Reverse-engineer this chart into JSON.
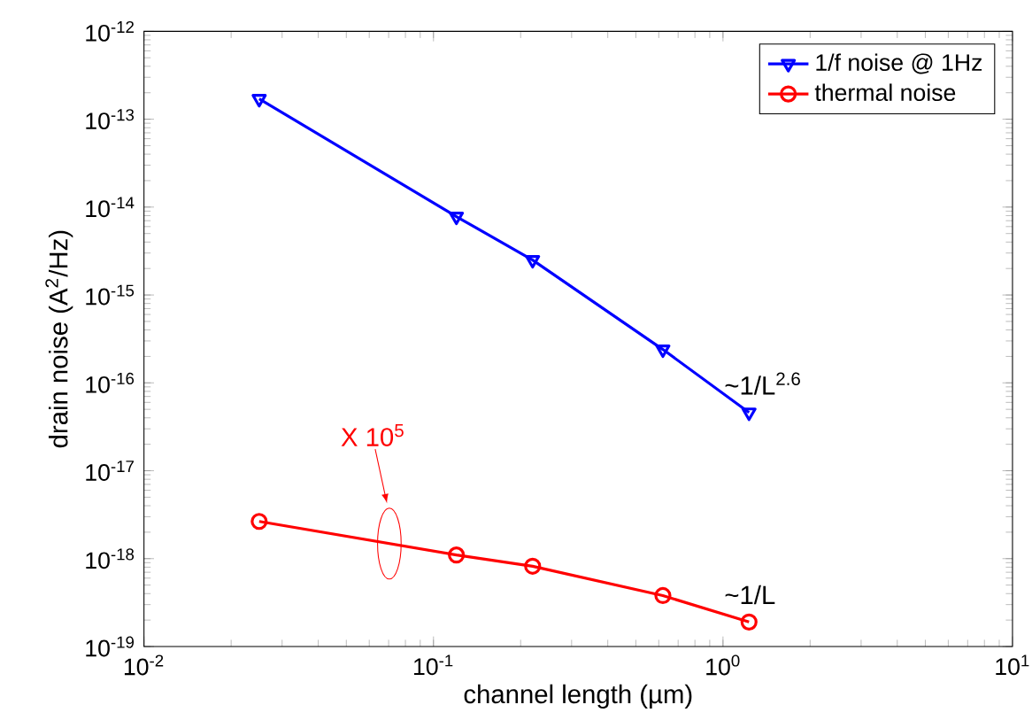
{
  "chart_data": {
    "type": "line",
    "xlabel": "channel length (µm)",
    "ylabel": "drain noise (A$^{2}$/Hz)",
    "log": "xy",
    "xlim": [
      0.01,
      10
    ],
    "ylim": [
      1e-19,
      1e-12
    ],
    "xticks": [
      {
        "value": 0.01,
        "label": "10$^{-2}$"
      },
      {
        "value": 0.1,
        "label": "10$^{-1}$"
      },
      {
        "value": 1,
        "label": "10$^{0}$"
      },
      {
        "value": 10,
        "label": "10$^{1}$"
      }
    ],
    "yticks": [
      {
        "value": 1e-19,
        "label": "10$^{-19}$"
      },
      {
        "value": 1e-18,
        "label": "10$^{-18}$"
      },
      {
        "value": 1e-17,
        "label": "10$^{-17}$"
      },
      {
        "value": 1e-16,
        "label": "10$^{-16}$"
      },
      {
        "value": 1e-15,
        "label": "10$^{-15}$"
      },
      {
        "value": 1e-14,
        "label": "10$^{-14}$"
      },
      {
        "value": 1e-13,
        "label": "10$^{-13}$"
      },
      {
        "value": 1e-12,
        "label": "10$^{-12}$"
      }
    ],
    "x": [
      0.025,
      0.12,
      0.22,
      0.62,
      1.23
    ],
    "series": [
      {
        "name": "1/f noise @ 1Hz",
        "color": "#0000ff",
        "marker": "triangle",
        "values": [
          1.7e-13,
          7.8e-15,
          2.5e-15,
          2.4e-16,
          4.6e-17
        ]
      },
      {
        "name": "thermal noise",
        "color": "#ff0000",
        "marker": "circle",
        "values": [
          2.65e-18,
          1.1e-18,
          8.2e-19,
          3.8e-19,
          1.9e-19
        ]
      }
    ],
    "legend": "top right",
    "grid": false,
    "annotations": [
      "~1/L$^{2.6}$",
      "~1/L",
      "X 10$^{5}$"
    ]
  }
}
